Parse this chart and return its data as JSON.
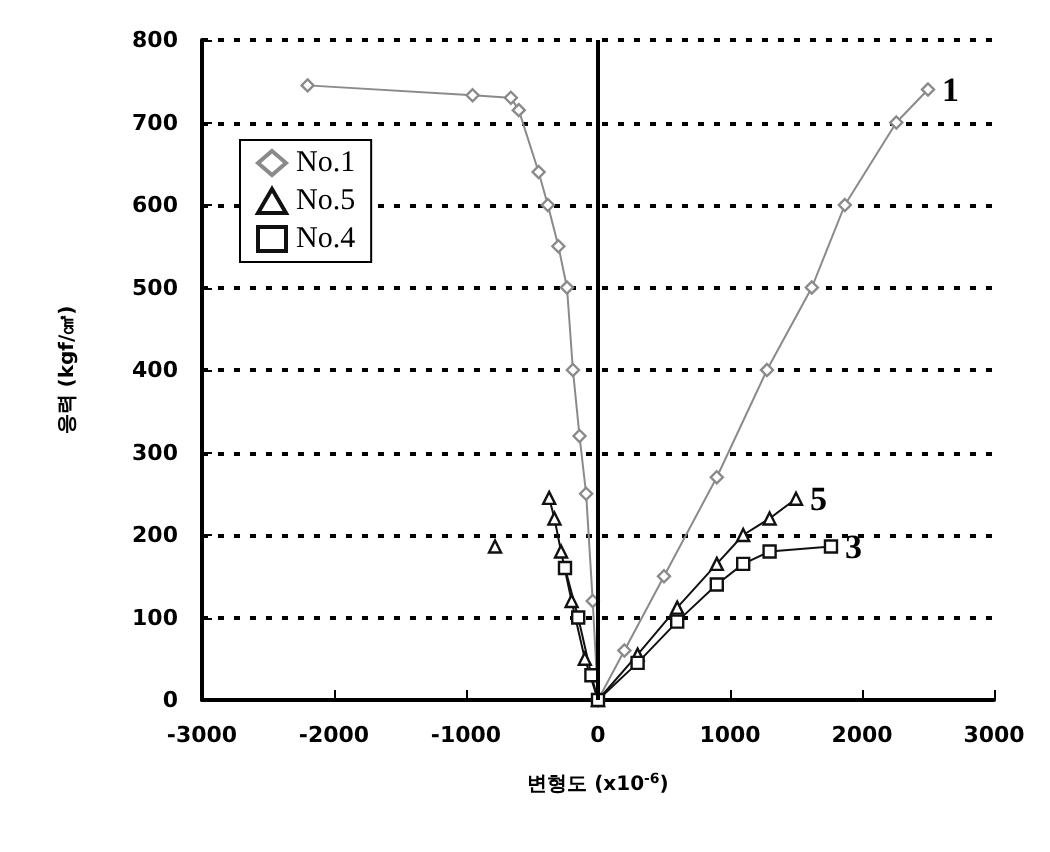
{
  "chart_data": {
    "type": "line",
    "xlabel": "변형도 (x10$^{-6}$)",
    "ylabel": "응력 (kgf/㎠)",
    "xlim": [
      -3000,
      3000
    ],
    "xticks": [
      -3000,
      -2000,
      -1000,
      0,
      1000,
      2000,
      3000
    ],
    "ylim": [
      0,
      800
    ],
    "yticks": [
      0,
      100,
      200,
      300,
      400,
      500,
      600,
      700,
      800
    ],
    "grid": "y",
    "legend": "top left",
    "series": [
      {
        "name": "No.1",
        "color": "#8a8a8a",
        "marker": "diamond",
        "x": [
          -2200,
          -950,
          -660,
          -600,
          -450,
          -380,
          -300,
          -235,
          -190,
          -140,
          -90,
          -40,
          0,
          200,
          500,
          900,
          1280,
          1620,
          1870,
          2260,
          2500
        ],
        "values": [
          745,
          733,
          730,
          715,
          640,
          600,
          550,
          500,
          400,
          320,
          250,
          120,
          0,
          60,
          150,
          270,
          400,
          500,
          600,
          700,
          740
        ]
      },
      {
        "name": "No.5",
        "color": "#111111",
        "marker": "triangle",
        "x": [
          -780,
          -600,
          -370,
          -330,
          -280,
          -200,
          -100,
          0,
          300,
          600,
          900,
          1100,
          1300,
          1500
        ],
        "values": [
          186,
          null,
          245,
          220,
          180,
          120,
          50,
          0,
          55,
          112,
          165,
          200,
          220,
          244
        ]
      },
      {
        "name": "No.4",
        "color": "#111111",
        "marker": "square",
        "x": [
          -250,
          -150,
          -50,
          0,
          300,
          600,
          900,
          1100,
          1300,
          1765
        ],
        "values": [
          160,
          100,
          30,
          0,
          45,
          95,
          140,
          165,
          180,
          186
        ]
      }
    ],
    "ref_lines": [
      {
        "axis": "x",
        "value": 0,
        "color": "#000000",
        "line_style": "solid"
      }
    ],
    "annotations": [
      {
        "text": "1",
        "x": 2500,
        "y": 740
      },
      {
        "text": "5",
        "x": 1500,
        "y": 244
      },
      {
        "text": "3",
        "x": 1765,
        "y": 186
      }
    ]
  }
}
